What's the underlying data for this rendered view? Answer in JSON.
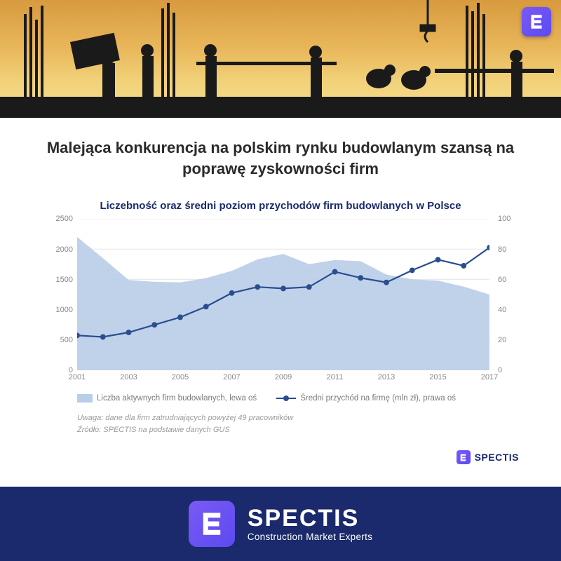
{
  "hero": {
    "sky_gradient": [
      "#d89a3e",
      "#e8b65a",
      "#f2d27a",
      "#f5df94"
    ],
    "silhouette_color": "#1a1a1a",
    "logo_bg": [
      "#7a5af5",
      "#5c4af0"
    ]
  },
  "title": "Malejąca konkurencja na polskim rynku budowlanym szansą na poprawę zyskowności firm",
  "chart": {
    "title": "Liczebność oraz średni poziom przychodów firm budowlanych w Polsce",
    "type": "area+line",
    "categories": [
      "2001",
      "2002",
      "2003",
      "2004",
      "2005",
      "2006",
      "2007",
      "2008",
      "2009",
      "2010",
      "2011",
      "2012",
      "2013",
      "2014",
      "2015",
      "2016",
      "2017"
    ],
    "x_tick_labels": [
      "2001",
      "2003",
      "2005",
      "2007",
      "2009",
      "2011",
      "2013",
      "2015",
      "2017"
    ],
    "area_series": {
      "label": "Liczba aktywnych firm budowlanych, lewa oś",
      "color": "#b8cde8",
      "values": [
        2200,
        1850,
        1490,
        1460,
        1450,
        1520,
        1640,
        1830,
        1920,
        1750,
        1820,
        1800,
        1580,
        1500,
        1480,
        1380,
        1250
      ]
    },
    "line_series": {
      "label": "Średni przychód na firmę (mln zł), prawa oś",
      "color": "#2a4d8f",
      "marker": "circle",
      "marker_size": 4,
      "line_width": 2.2,
      "values": [
        23,
        22,
        25,
        30,
        35,
        42,
        51,
        55,
        54,
        55,
        65,
        61,
        58,
        66,
        73,
        69,
        81
      ]
    },
    "y_left": {
      "min": 0,
      "max": 2500,
      "step": 500,
      "ticks": [
        0,
        500,
        1000,
        1500,
        2000,
        2500
      ]
    },
    "y_right": {
      "min": 0,
      "max": 100,
      "step": 20,
      "ticks": [
        0,
        20,
        40,
        60,
        80,
        100
      ]
    },
    "grid_color": "#e5e5e5",
    "background_color": "#ffffff",
    "axis_label_color": "#888888",
    "axis_fontsize": 11,
    "title_fontsize": 15,
    "title_color": "#1a2a6c"
  },
  "legend": {
    "area_label": "Liczba aktywnych firm budowlanych, lewa oś",
    "line_label": "Średni przychód na firmę (mln zł), prawa oś"
  },
  "footnote": {
    "line1": "Uwaga: dane dla firm zatrudniających powyżej 49 pracowników",
    "line2": "Źródło: SPECTIS na podstawie danych GUS"
  },
  "brand": {
    "name": "SPECTIS",
    "tagline": "Construction Market Experts",
    "footer_bg": "#1a2a6c",
    "footer_text_color": "#ffffff"
  }
}
